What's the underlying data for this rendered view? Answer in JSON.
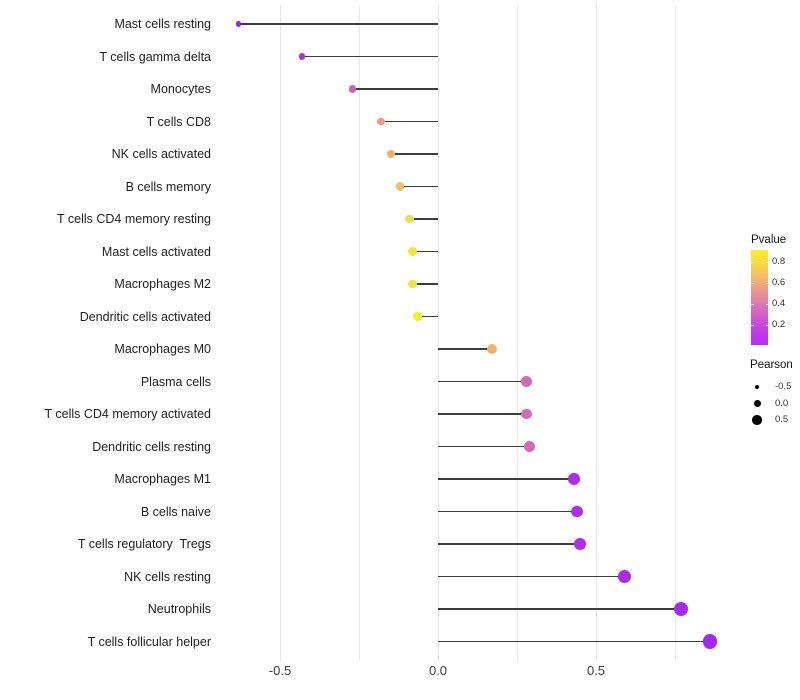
{
  "chart_data": {
    "type": "scatter",
    "subtype": "horizontal-lollipop",
    "title": "",
    "xlabel": "",
    "ylabel": "",
    "x_ticks": [
      "-0.5",
      "0.0",
      "0.5"
    ],
    "x_tick_values": [
      -0.5,
      0.0,
      0.5
    ],
    "xlim": [
      -0.7,
      0.94
    ],
    "gridlines_x": [
      -0.5,
      -0.25,
      0,
      0.25,
      0.5,
      0.75
    ],
    "grid": "light vertical gridlines, white background, no panel border",
    "encoding": "x = Pearson correlation, dot color = Pvalue, dot size = Pearson",
    "points": [
      {
        "label": "Mast cells resting",
        "pearson": -0.63,
        "color": "#8b2be0"
      },
      {
        "label": "T cells gamma delta",
        "pearson": -0.43,
        "color": "#a434de"
      },
      {
        "label": "Monocytes",
        "pearson": -0.27,
        "color": "#cd62ba"
      },
      {
        "label": "T cells CD8",
        "pearson": -0.18,
        "color": "#eb9e86"
      },
      {
        "label": "NK cells activated",
        "pearson": -0.15,
        "color": "#f2b266"
      },
      {
        "label": "B cells memory",
        "pearson": -0.12,
        "color": "#f1c15e"
      },
      {
        "label": "T cells CD4 memory resting",
        "pearson": -0.09,
        "color": "#f0df4c"
      },
      {
        "label": "Mast cells activated",
        "pearson": -0.08,
        "color": "#f3e63c"
      },
      {
        "label": "Macrophages M2",
        "pearson": -0.08,
        "color": "#f1e244"
      },
      {
        "label": "Dendritic cells activated",
        "pearson": -0.065,
        "color": "#f8ef25"
      },
      {
        "label": "Macrophages M0",
        "pearson": 0.17,
        "color": "#f1b26a"
      },
      {
        "label": "Plasma cells",
        "pearson": 0.28,
        "color": "#d36cb7"
      },
      {
        "label": "T cells CD4 memory activated",
        "pearson": 0.28,
        "color": "#d36cb7"
      },
      {
        "label": "Dendritic cells resting",
        "pearson": 0.29,
        "color": "#d26ab6"
      },
      {
        "label": "Macrophages M1",
        "pearson": 0.43,
        "color": "#b02ee9"
      },
      {
        "label": "B cells naive",
        "pearson": 0.44,
        "color": "#ae2eeb"
      },
      {
        "label": "T cells regulatory  Tregs",
        "pearson": 0.45,
        "color": "#ae2eeb"
      },
      {
        "label": "NK cells resting",
        "pearson": 0.59,
        "color": "#a92ced"
      },
      {
        "label": "Neutrophils",
        "pearson": 0.77,
        "color": "#a62af0"
      },
      {
        "label": "T cells follicular helper",
        "pearson": 0.86,
        "color": "#a527f3"
      }
    ],
    "legend": {
      "position": "right",
      "pvalue": {
        "title": "Pvalue",
        "ticks": [
          "0.8",
          "0.6",
          "0.4",
          "0.2"
        ],
        "gradient_top_to_bottom": [
          "#faee28",
          "#f8dd3f",
          "#f4c35e",
          "#eda57f",
          "#e3879f",
          "#d76bbc",
          "#cc4fd6",
          "#c238e9",
          "#ba2bf5"
        ]
      },
      "pearson": {
        "title": "Pearson",
        "size_labels": [
          "-0.5",
          "0.0",
          "0.5"
        ]
      }
    },
    "styles": {
      "stem_color": "#3d3d3d",
      "grid_minor_color": "#eaeaea",
      "grid_major_color": "#e4e4e4",
      "axis_text_color": "#404040",
      "category_text_color": "#1f1f1f"
    }
  }
}
